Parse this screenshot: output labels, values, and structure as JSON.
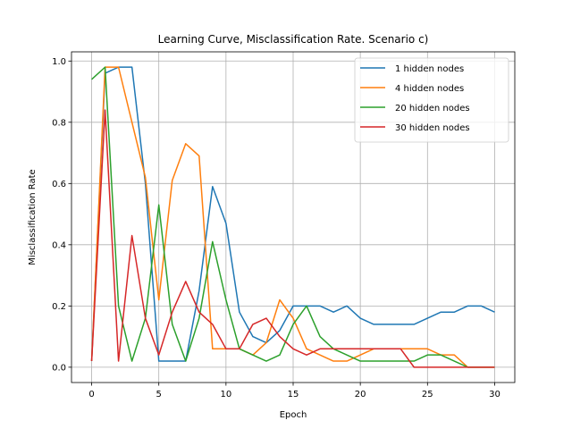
{
  "chart_data": {
    "type": "line",
    "title": "Learning Curve, Misclassification Rate. Scenario c)",
    "xlabel": "Epoch",
    "ylabel": "Misclassification Rate",
    "xlim": [
      -1.5,
      31.5
    ],
    "ylim": [
      -0.05,
      1.03
    ],
    "xticks": [
      0,
      5,
      10,
      15,
      20,
      25,
      30
    ],
    "yticks": [
      0.0,
      0.2,
      0.4,
      0.6,
      0.8,
      1.0
    ],
    "xtick_labels": [
      "0",
      "5",
      "10",
      "15",
      "20",
      "25",
      "30"
    ],
    "ytick_labels": [
      "0.0",
      "0.2",
      "0.4",
      "0.6",
      "0.8",
      "1.0"
    ],
    "grid": true,
    "legend_position": "top-right",
    "x": [
      0,
      1,
      2,
      3,
      4,
      5,
      6,
      7,
      8,
      9,
      10,
      11,
      12,
      13,
      14,
      15,
      16,
      17,
      18,
      19,
      20,
      21,
      22,
      23,
      24,
      25,
      26,
      27,
      28,
      29,
      30
    ],
    "series": [
      {
        "name": "1 hidden nodes",
        "color": "#1f77b4",
        "values": [
          0.02,
          0.96,
          0.98,
          0.98,
          0.6,
          0.02,
          0.02,
          0.02,
          0.25,
          0.59,
          0.47,
          0.18,
          0.1,
          0.08,
          0.12,
          0.2,
          0.2,
          0.2,
          0.18,
          0.2,
          0.16,
          0.14,
          0.14,
          0.14,
          0.14,
          0.16,
          0.18,
          0.18,
          0.2,
          0.2,
          0.18
        ]
      },
      {
        "name": "4 hidden nodes",
        "color": "#ff7f0e",
        "values": [
          0.02,
          0.98,
          0.98,
          0.8,
          0.62,
          0.22,
          0.61,
          0.73,
          0.69,
          0.06,
          0.06,
          0.06,
          0.04,
          0.08,
          0.22,
          0.16,
          0.06,
          0.04,
          0.02,
          0.02,
          0.04,
          0.06,
          0.06,
          0.06,
          0.06,
          0.06,
          0.04,
          0.04,
          0.0,
          0.0,
          0.0
        ]
      },
      {
        "name": "20 hidden nodes",
        "color": "#2ca02c",
        "values": [
          0.94,
          0.98,
          0.2,
          0.02,
          0.16,
          0.53,
          0.14,
          0.02,
          0.16,
          0.41,
          0.22,
          0.06,
          0.04,
          0.02,
          0.04,
          0.14,
          0.2,
          0.1,
          0.06,
          0.04,
          0.02,
          0.02,
          0.02,
          0.02,
          0.02,
          0.04,
          0.04,
          0.02,
          0.0,
          0.0,
          0.0
        ]
      },
      {
        "name": "30 hidden nodes",
        "color": "#d62728",
        "values": [
          0.02,
          0.84,
          0.02,
          0.43,
          0.16,
          0.04,
          0.18,
          0.28,
          0.18,
          0.14,
          0.06,
          0.06,
          0.14,
          0.16,
          0.1,
          0.06,
          0.04,
          0.06,
          0.06,
          0.06,
          0.06,
          0.06,
          0.06,
          0.06,
          0.0,
          0.0,
          0.0,
          0.0,
          0.0,
          0.0,
          0.0
        ]
      }
    ]
  }
}
